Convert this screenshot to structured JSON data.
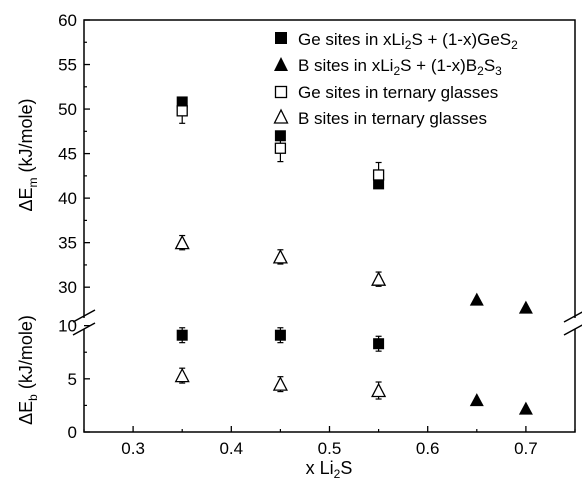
{
  "chart_data": {
    "type": "scatter",
    "title": "",
    "xlabel": "x Li2S",
    "ylabel_top": "ΔEm (kJ/mole)",
    "ylabel_bottom": "ΔEb (kJ/mole)",
    "xlim": [
      0.25,
      0.75
    ],
    "x_ticks": [
      0.3,
      0.4,
      0.5,
      0.6,
      0.7
    ],
    "y_axis_break": true,
    "ylim_top": [
      28,
      60
    ],
    "y_ticks_top": [
      30,
      35,
      40,
      45,
      50,
      55,
      60
    ],
    "ylim_bottom": [
      0,
      11
    ],
    "y_ticks_bottom": [
      0,
      5,
      10
    ],
    "legend_position": "top-right",
    "series": [
      {
        "name": "Ge sites in xLi2S + (1-x)GeS2",
        "marker": "filled-square",
        "points": [
          {
            "x": 0.35,
            "y": 50.8,
            "panel": "top"
          },
          {
            "x": 0.45,
            "y": 47.0,
            "panel": "top"
          },
          {
            "x": 0.55,
            "y": 41.6,
            "panel": "top"
          },
          {
            "x": 0.35,
            "y": 9.1,
            "err": 0.7,
            "panel": "bottom"
          },
          {
            "x": 0.45,
            "y": 9.1,
            "err": 0.7,
            "panel": "bottom"
          },
          {
            "x": 0.55,
            "y": 8.3,
            "err": 0.7,
            "panel": "bottom"
          }
        ]
      },
      {
        "name": "B sites in xLi2S + (1-x)B2S3",
        "marker": "filled-triangle",
        "points": [
          {
            "x": 0.65,
            "y": 28.6,
            "panel": "top"
          },
          {
            "x": 0.7,
            "y": 27.7,
            "panel": "top"
          },
          {
            "x": 0.65,
            "y": 3.0,
            "panel": "bottom"
          },
          {
            "x": 0.7,
            "y": 2.2,
            "panel": "bottom"
          }
        ]
      },
      {
        "name": "Ge sites in ternary glasses",
        "marker": "open-square",
        "points": [
          {
            "x": 0.35,
            "y": 49.8,
            "err": 1.4,
            "panel": "top"
          },
          {
            "x": 0.45,
            "y": 45.6,
            "err": 1.5,
            "panel": "top"
          },
          {
            "x": 0.55,
            "y": 42.6,
            "err": 1.4,
            "panel": "top"
          }
        ]
      },
      {
        "name": "B sites in ternary glasses",
        "marker": "open-triangle",
        "points": [
          {
            "x": 0.35,
            "y": 35.0,
            "err": 0.8,
            "panel": "top"
          },
          {
            "x": 0.45,
            "y": 33.4,
            "err": 0.8,
            "panel": "top"
          },
          {
            "x": 0.55,
            "y": 30.9,
            "err": 0.8,
            "panel": "top"
          },
          {
            "x": 0.35,
            "y": 5.3,
            "err": 0.7,
            "panel": "bottom"
          },
          {
            "x": 0.45,
            "y": 4.5,
            "err": 0.7,
            "panel": "bottom"
          },
          {
            "x": 0.55,
            "y": 3.9,
            "err": 0.8,
            "panel": "bottom"
          }
        ]
      }
    ]
  }
}
